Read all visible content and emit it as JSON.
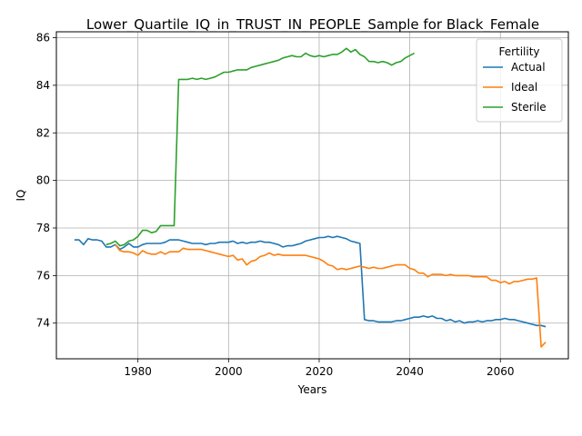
{
  "chart_data": {
    "type": "line",
    "title": "Lower_Quartile_IQ_in_TRUST_IN_PEOPLE_Sample for Black_Female",
    "xlabel": "Years",
    "ylabel": "IQ",
    "xlim": [
      1962,
      2075
    ],
    "ylim": [
      72.5,
      86.25
    ],
    "xticks": [
      1980,
      2000,
      2020,
      2040,
      2060
    ],
    "yticks": [
      74,
      76,
      78,
      80,
      82,
      84,
      86
    ],
    "grid": true,
    "legend": {
      "title": "Fertility",
      "placement": "top-right"
    },
    "series": [
      {
        "name": "Actual",
        "color": "#1f77b4",
        "x": [
          1966,
          1967,
          1968,
          1969,
          1970,
          1971,
          1972,
          1973,
          1974,
          1975,
          1976,
          1977,
          1978,
          1979,
          1980,
          1981,
          1982,
          1983,
          1984,
          1985,
          1986,
          1987,
          1988,
          1989,
          1990,
          1991,
          1992,
          1993,
          1994,
          1995,
          1996,
          1997,
          1998,
          1999,
          2000,
          2001,
          2002,
          2003,
          2004,
          2005,
          2006,
          2007,
          2008,
          2009,
          2010,
          2011,
          2012,
          2013,
          2014,
          2015,
          2016,
          2017,
          2018,
          2019,
          2020,
          2021,
          2022,
          2023,
          2024,
          2025,
          2026,
          2027,
          2028,
          2029,
          2030,
          2031,
          2032,
          2033,
          2034,
          2035,
          2036,
          2037,
          2038,
          2039,
          2040,
          2041,
          2042,
          2043,
          2044,
          2045,
          2046,
          2047,
          2048,
          2049,
          2050,
          2051,
          2052,
          2053,
          2054,
          2055,
          2056,
          2057,
          2058,
          2059,
          2060,
          2061,
          2062,
          2063,
          2064,
          2065,
          2066,
          2067,
          2068,
          2069,
          2070
        ],
        "y": [
          77.5,
          77.5,
          77.3,
          77.55,
          77.5,
          77.5,
          77.45,
          77.2,
          77.2,
          77.3,
          77.1,
          77.2,
          77.35,
          77.2,
          77.2,
          77.3,
          77.35,
          77.35,
          77.35,
          77.35,
          77.4,
          77.5,
          77.5,
          77.5,
          77.45,
          77.4,
          77.35,
          77.35,
          77.35,
          77.3,
          77.35,
          77.35,
          77.4,
          77.4,
          77.4,
          77.45,
          77.35,
          77.4,
          77.35,
          77.4,
          77.4,
          77.45,
          77.4,
          77.4,
          77.35,
          77.3,
          77.2,
          77.25,
          77.25,
          77.3,
          77.35,
          77.45,
          77.5,
          77.55,
          77.6,
          77.6,
          77.65,
          77.6,
          77.65,
          77.6,
          77.55,
          77.45,
          77.4,
          77.35,
          74.15,
          74.1,
          74.1,
          74.05,
          74.05,
          74.05,
          74.05,
          74.1,
          74.1,
          74.15,
          74.2,
          74.25,
          74.25,
          74.3,
          74.25,
          74.3,
          74.2,
          74.2,
          74.1,
          74.15,
          74.05,
          74.1,
          74.0,
          74.05,
          74.05,
          74.1,
          74.05,
          74.1,
          74.1,
          74.15,
          74.15,
          74.2,
          74.15,
          74.15,
          74.1,
          74.05,
          74.0,
          73.95,
          73.9,
          73.9,
          73.85
        ]
      },
      {
        "name": "Ideal",
        "color": "#ff7f0e",
        "x": [
          1975,
          1976,
          1977,
          1978,
          1979,
          1980,
          1981,
          1982,
          1983,
          1984,
          1985,
          1986,
          1987,
          1988,
          1989,
          1990,
          1991,
          1992,
          1993,
          1994,
          1995,
          1996,
          1997,
          1998,
          1999,
          2000,
          2001,
          2002,
          2003,
          2004,
          2005,
          2006,
          2007,
          2008,
          2009,
          2010,
          2011,
          2012,
          2013,
          2014,
          2015,
          2016,
          2017,
          2018,
          2019,
          2020,
          2021,
          2022,
          2023,
          2024,
          2025,
          2026,
          2027,
          2028,
          2029,
          2030,
          2031,
          2032,
          2033,
          2034,
          2035,
          2036,
          2037,
          2038,
          2039,
          2040,
          2041,
          2042,
          2043,
          2044,
          2045,
          2046,
          2047,
          2048,
          2049,
          2050,
          2051,
          2052,
          2053,
          2054,
          2055,
          2056,
          2057,
          2058,
          2059,
          2060,
          2061,
          2062,
          2063,
          2064,
          2065,
          2066,
          2067,
          2068,
          2069,
          2070
        ],
        "y": [
          77.3,
          77.05,
          77.0,
          77.0,
          76.95,
          76.85,
          77.05,
          76.95,
          76.9,
          76.9,
          77.0,
          76.9,
          77.0,
          77.0,
          77.0,
          77.15,
          77.1,
          77.1,
          77.1,
          77.1,
          77.05,
          77.0,
          76.95,
          76.9,
          76.85,
          76.8,
          76.85,
          76.65,
          76.7,
          76.45,
          76.6,
          76.65,
          76.8,
          76.85,
          76.95,
          76.85,
          76.9,
          76.85,
          76.85,
          76.85,
          76.85,
          76.85,
          76.85,
          76.8,
          76.75,
          76.7,
          76.6,
          76.45,
          76.4,
          76.25,
          76.3,
          76.25,
          76.3,
          76.35,
          76.4,
          76.35,
          76.3,
          76.35,
          76.3,
          76.3,
          76.35,
          76.4,
          76.45,
          76.45,
          76.45,
          76.3,
          76.25,
          76.1,
          76.1,
          75.95,
          76.05,
          76.05,
          76.05,
          76.0,
          76.05,
          76.0,
          76.0,
          76.0,
          76.0,
          75.95,
          75.95,
          75.95,
          75.95,
          75.8,
          75.8,
          75.7,
          75.75,
          75.65,
          75.75,
          75.75,
          75.8,
          75.85,
          75.85,
          75.9,
          73.0,
          73.2
        ]
      },
      {
        "name": "Sterile",
        "color": "#2ca02c",
        "x": [
          1973,
          1974,
          1975,
          1976,
          1977,
          1978,
          1979,
          1980,
          1981,
          1982,
          1983,
          1984,
          1985,
          1986,
          1987,
          1988,
          1989,
          1990,
          1991,
          1992,
          1993,
          1994,
          1995,
          1996,
          1997,
          1998,
          1999,
          2000,
          2001,
          2002,
          2003,
          2004,
          2005,
          2006,
          2007,
          2008,
          2009,
          2010,
          2011,
          2012,
          2013,
          2014,
          2015,
          2016,
          2017,
          2018,
          2019,
          2020,
          2021,
          2022,
          2023,
          2024,
          2025,
          2026,
          2027,
          2028,
          2029,
          2030,
          2031,
          2032,
          2033,
          2034,
          2035,
          2036,
          2037,
          2038,
          2039,
          2040,
          2041
        ],
        "y": [
          77.3,
          77.35,
          77.45,
          77.25,
          77.3,
          77.45,
          77.5,
          77.65,
          77.9,
          77.9,
          77.8,
          77.85,
          78.1,
          78.1,
          78.1,
          78.1,
          84.25,
          84.25,
          84.25,
          84.3,
          84.25,
          84.3,
          84.25,
          84.3,
          84.35,
          84.45,
          84.55,
          84.55,
          84.6,
          84.65,
          84.65,
          84.65,
          84.75,
          84.8,
          84.85,
          84.9,
          84.95,
          85.0,
          85.05,
          85.15,
          85.2,
          85.25,
          85.2,
          85.2,
          85.35,
          85.25,
          85.2,
          85.25,
          85.2,
          85.25,
          85.3,
          85.3,
          85.4,
          85.55,
          85.4,
          85.5,
          85.3,
          85.2,
          85.0,
          85.0,
          84.95,
          85.0,
          84.95,
          84.85,
          84.95,
          85.0,
          85.15,
          85.25,
          85.35
        ]
      }
    ]
  }
}
